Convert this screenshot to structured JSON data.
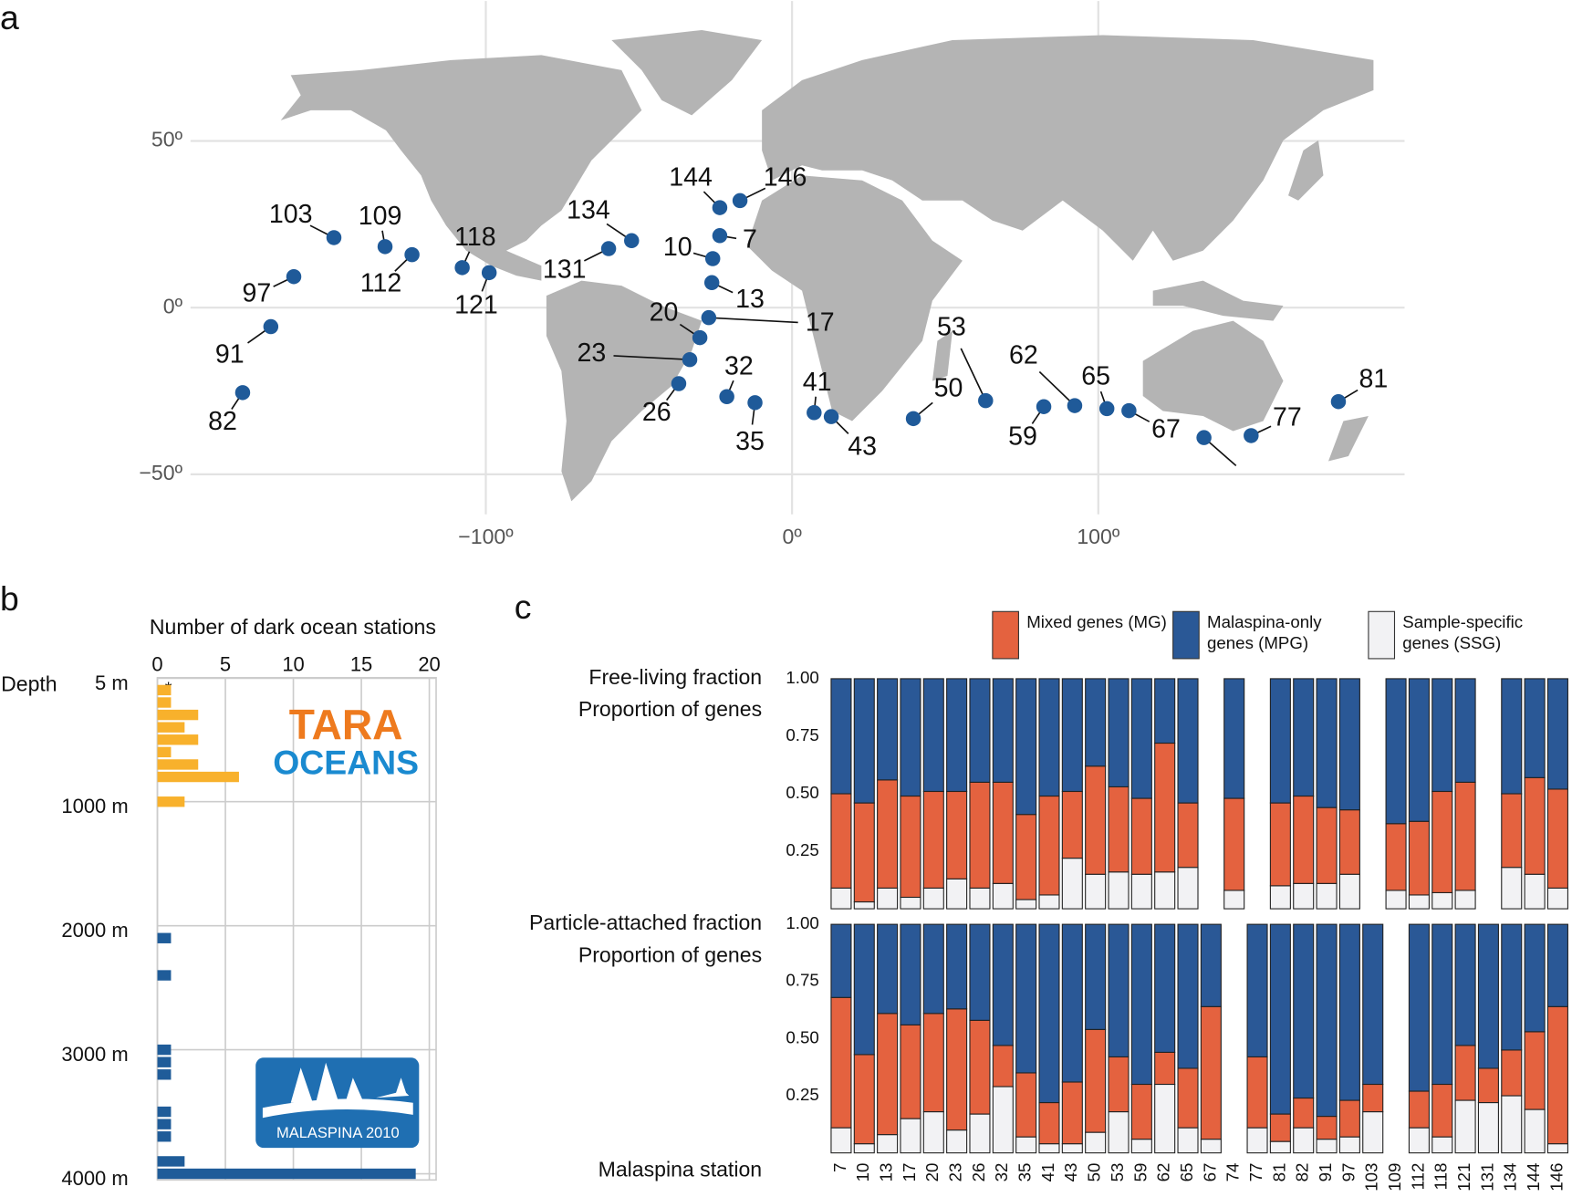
{
  "panel_labels": [
    "a",
    "b",
    "c"
  ],
  "chart_data": [
    {
      "type": "scatter",
      "color": "#1f5a99",
      "grid": true,
      "xlim": [
        -220,
        200
      ],
      "ylim": [
        -62,
        92
      ],
      "xticks": [
        {
          "value": -100,
          "label": "−100º"
        },
        {
          "value": 0,
          "label": "0º"
        },
        {
          "value": 100,
          "label": "100º"
        }
      ],
      "yticks": [
        {
          "value": 50,
          "label": "50º"
        },
        {
          "value": 0,
          "label": "0º"
        },
        {
          "value": -50,
          "label": "−50º"
        }
      ],
      "labels": [
        "7",
        "10",
        "13",
        "17",
        "20",
        "23",
        "26",
        "32",
        "35",
        "41",
        "43",
        "50",
        "53",
        "59",
        "62",
        "65",
        "67",
        null,
        "77",
        "81",
        "82",
        "91",
        "97",
        "103",
        "109",
        "112",
        "118",
        "121",
        "131",
        "134",
        "144",
        "146"
      ],
      "x": [
        -23.6,
        -25.9,
        -26.2,
        -27.2,
        -30.1,
        -33.4,
        -37.0,
        -21.3,
        -12.1,
        7.2,
        12.8,
        39.6,
        63.2,
        82.2,
        92.3,
        102.8,
        110.0,
        134.5,
        149.9,
        178.4,
        -179.4,
        -170.2,
        -162.7,
        -149.6,
        -132.9,
        -124.1,
        -107.7,
        -98.9,
        -59.9,
        -52.4,
        -23.6,
        -17.0
      ],
      "values": [
        21.6,
        14.7,
        7.5,
        -3.0,
        -9.0,
        -15.6,
        -22.8,
        -26.7,
        -28.5,
        -31.5,
        -32.7,
        -33.3,
        -27.9,
        -29.7,
        -29.4,
        -30.3,
        -30.9,
        -39.0,
        -38.4,
        -28.2,
        -25.5,
        -5.7,
        9.3,
        21.0,
        18.3,
        15.9,
        12.0,
        10.5,
        17.7,
        20.1,
        30.0,
        32.1
      ]
    },
    {
      "type": "histogram",
      "orientation": "horizontal",
      "grid": true,
      "xlabel": "Number of dark ocean stations",
      "ylabel": "Depth",
      "xlim": [
        0,
        20.5
      ],
      "xticks": [
        0,
        5,
        10,
        15,
        20
      ],
      "ylim": [
        0,
        4050
      ],
      "yticks": [
        {
          "value": 5,
          "label": "5 m"
        },
        {
          "value": 1000,
          "label": "1000 m"
        },
        {
          "value": 2000,
          "label": "2000 m"
        },
        {
          "value": 3000,
          "label": "3000 m"
        },
        {
          "value": 4000,
          "label": "4000 m"
        }
      ],
      "annotations": [
        "*",
        "TARA",
        "OCEANS",
        "MALASPINA 2010"
      ],
      "bins": [
        -50,
        50,
        150,
        250,
        350,
        450,
        550,
        650,
        750,
        850,
        950,
        1050,
        1150,
        1250,
        1350,
        1450,
        1550,
        1650,
        1750,
        1850,
        1950,
        2050,
        2150,
        2250,
        2350,
        2450,
        2550,
        2650,
        2750,
        2850,
        2950,
        3050,
        3150,
        3250,
        3350,
        3450,
        3550,
        3650,
        3750,
        3850,
        3950,
        4050
      ],
      "series": [
        {
          "color": "#f8b12c",
          "values": [
            0,
            1,
            1,
            3,
            2,
            3,
            1,
            3,
            6,
            0,
            2,
            0,
            0,
            0,
            0,
            0,
            0,
            0,
            0,
            0,
            0,
            0,
            0,
            0,
            0,
            0,
            0,
            0,
            0,
            0,
            0,
            0,
            0,
            0,
            0,
            0,
            0,
            0,
            0,
            0,
            0
          ]
        },
        {
          "color": "#1f5c99",
          "values": [
            0,
            0,
            0,
            0,
            0,
            0,
            0,
            0,
            0,
            0,
            0,
            0,
            0,
            0,
            0,
            0,
            0,
            0,
            0,
            0,
            0,
            1,
            0,
            0,
            1,
            0,
            0,
            0,
            0,
            0,
            1,
            1,
            1,
            0,
            0,
            1,
            1,
            1,
            0,
            2,
            19
          ]
        }
      ]
    },
    {
      "type": "bar",
      "stacked": true,
      "title": "Free-living fraction",
      "ylabel": "Proportion of genes",
      "ylim": [
        0,
        1
      ],
      "yticks": [
        0.25,
        {
          "value": 0.5,
          "label": "0.50"
        },
        0.75,
        {
          "value": 1,
          "label": "1.00"
        }
      ],
      "series": [
        {
          "name": "Mixed genes (MG)",
          "color": "#e4623f",
          "values": [
            0.41,
            0.43,
            0.47,
            0.44,
            0.42,
            0.38,
            0.46,
            0.44,
            0.37,
            0.43,
            0.29,
            0.47,
            0.37,
            0.33,
            0.56,
            0.28,
            null,
            0.4,
            null,
            0.36,
            0.38,
            0.33,
            0.28,
            null,
            0.29,
            0.32,
            0.44,
            0.47,
            null,
            0.32,
            0.42,
            0.43
          ]
        },
        {
          "name": "Malaspina-only genes (MPG)",
          "color": "#2a5896",
          "values": [
            0.5,
            0.54,
            0.44,
            0.51,
            0.49,
            0.49,
            0.45,
            0.45,
            0.59,
            0.51,
            0.49,
            0.38,
            0.47,
            0.52,
            0.28,
            0.54,
            null,
            0.52,
            null,
            0.54,
            0.51,
            0.56,
            0.57,
            null,
            0.63,
            0.62,
            0.49,
            0.45,
            null,
            0.5,
            0.43,
            0.48
          ]
        },
        {
          "name": "Sample-specific genes (SSG)",
          "color": "#f2f2f4",
          "values": [
            0.09,
            0.03,
            0.09,
            0.05,
            0.09,
            0.13,
            0.09,
            0.11,
            0.04,
            0.06,
            0.22,
            0.15,
            0.16,
            0.15,
            0.16,
            0.18,
            null,
            0.08,
            null,
            0.1,
            0.11,
            0.11,
            0.15,
            null,
            0.08,
            0.06,
            0.07,
            0.08,
            null,
            0.18,
            0.15,
            0.09
          ]
        }
      ]
    },
    {
      "type": "bar",
      "stacked": true,
      "title": "Particle-attached fraction",
      "ylabel": "Proportion of genes",
      "xlabel": "Malaspina station",
      "categories": [
        7,
        10,
        13,
        17,
        20,
        23,
        26,
        32,
        35,
        41,
        43,
        50,
        53,
        59,
        62,
        65,
        67,
        74,
        77,
        81,
        82,
        91,
        97,
        103,
        109,
        112,
        118,
        121,
        131,
        134,
        144,
        146
      ],
      "ylim": [
        0,
        1
      ],
      "yticks": [
        0.25,
        {
          "value": 0.5,
          "label": "0.50"
        },
        0.75,
        {
          "value": 1,
          "label": "1.00"
        }
      ],
      "series": [
        {
          "color": "#e4623f",
          "values": [
            0.57,
            0.39,
            0.53,
            0.41,
            0.43,
            0.53,
            0.41,
            0.18,
            0.28,
            0.18,
            0.27,
            0.45,
            0.24,
            0.24,
            0.14,
            0.26,
            0.58,
            null,
            0.31,
            0.12,
            0.13,
            0.1,
            0.16,
            0.12,
            null,
            0.16,
            0.23,
            0.24,
            0.15,
            0.2,
            0.34,
            0.6
          ]
        },
        {
          "color": "#2a5896",
          "values": [
            0.32,
            0.57,
            0.39,
            0.44,
            0.39,
            0.37,
            0.42,
            0.53,
            0.65,
            0.78,
            0.69,
            0.46,
            0.58,
            0.7,
            0.56,
            0.63,
            0.36,
            null,
            0.58,
            0.83,
            0.76,
            0.84,
            0.77,
            0.7,
            null,
            0.73,
            0.7,
            0.53,
            0.63,
            0.55,
            0.47,
            0.36
          ]
        },
        {
          "color": "#f2f2f4",
          "values": [
            0.11,
            0.04,
            0.08,
            0.15,
            0.18,
            0.1,
            0.17,
            0.29,
            0.07,
            0.04,
            0.04,
            0.09,
            0.18,
            0.06,
            0.3,
            0.11,
            0.06,
            null,
            0.11,
            0.05,
            0.11,
            0.06,
            0.07,
            0.18,
            null,
            0.11,
            0.07,
            0.23,
            0.22,
            0.25,
            0.19,
            0.04
          ]
        }
      ]
    }
  ]
}
